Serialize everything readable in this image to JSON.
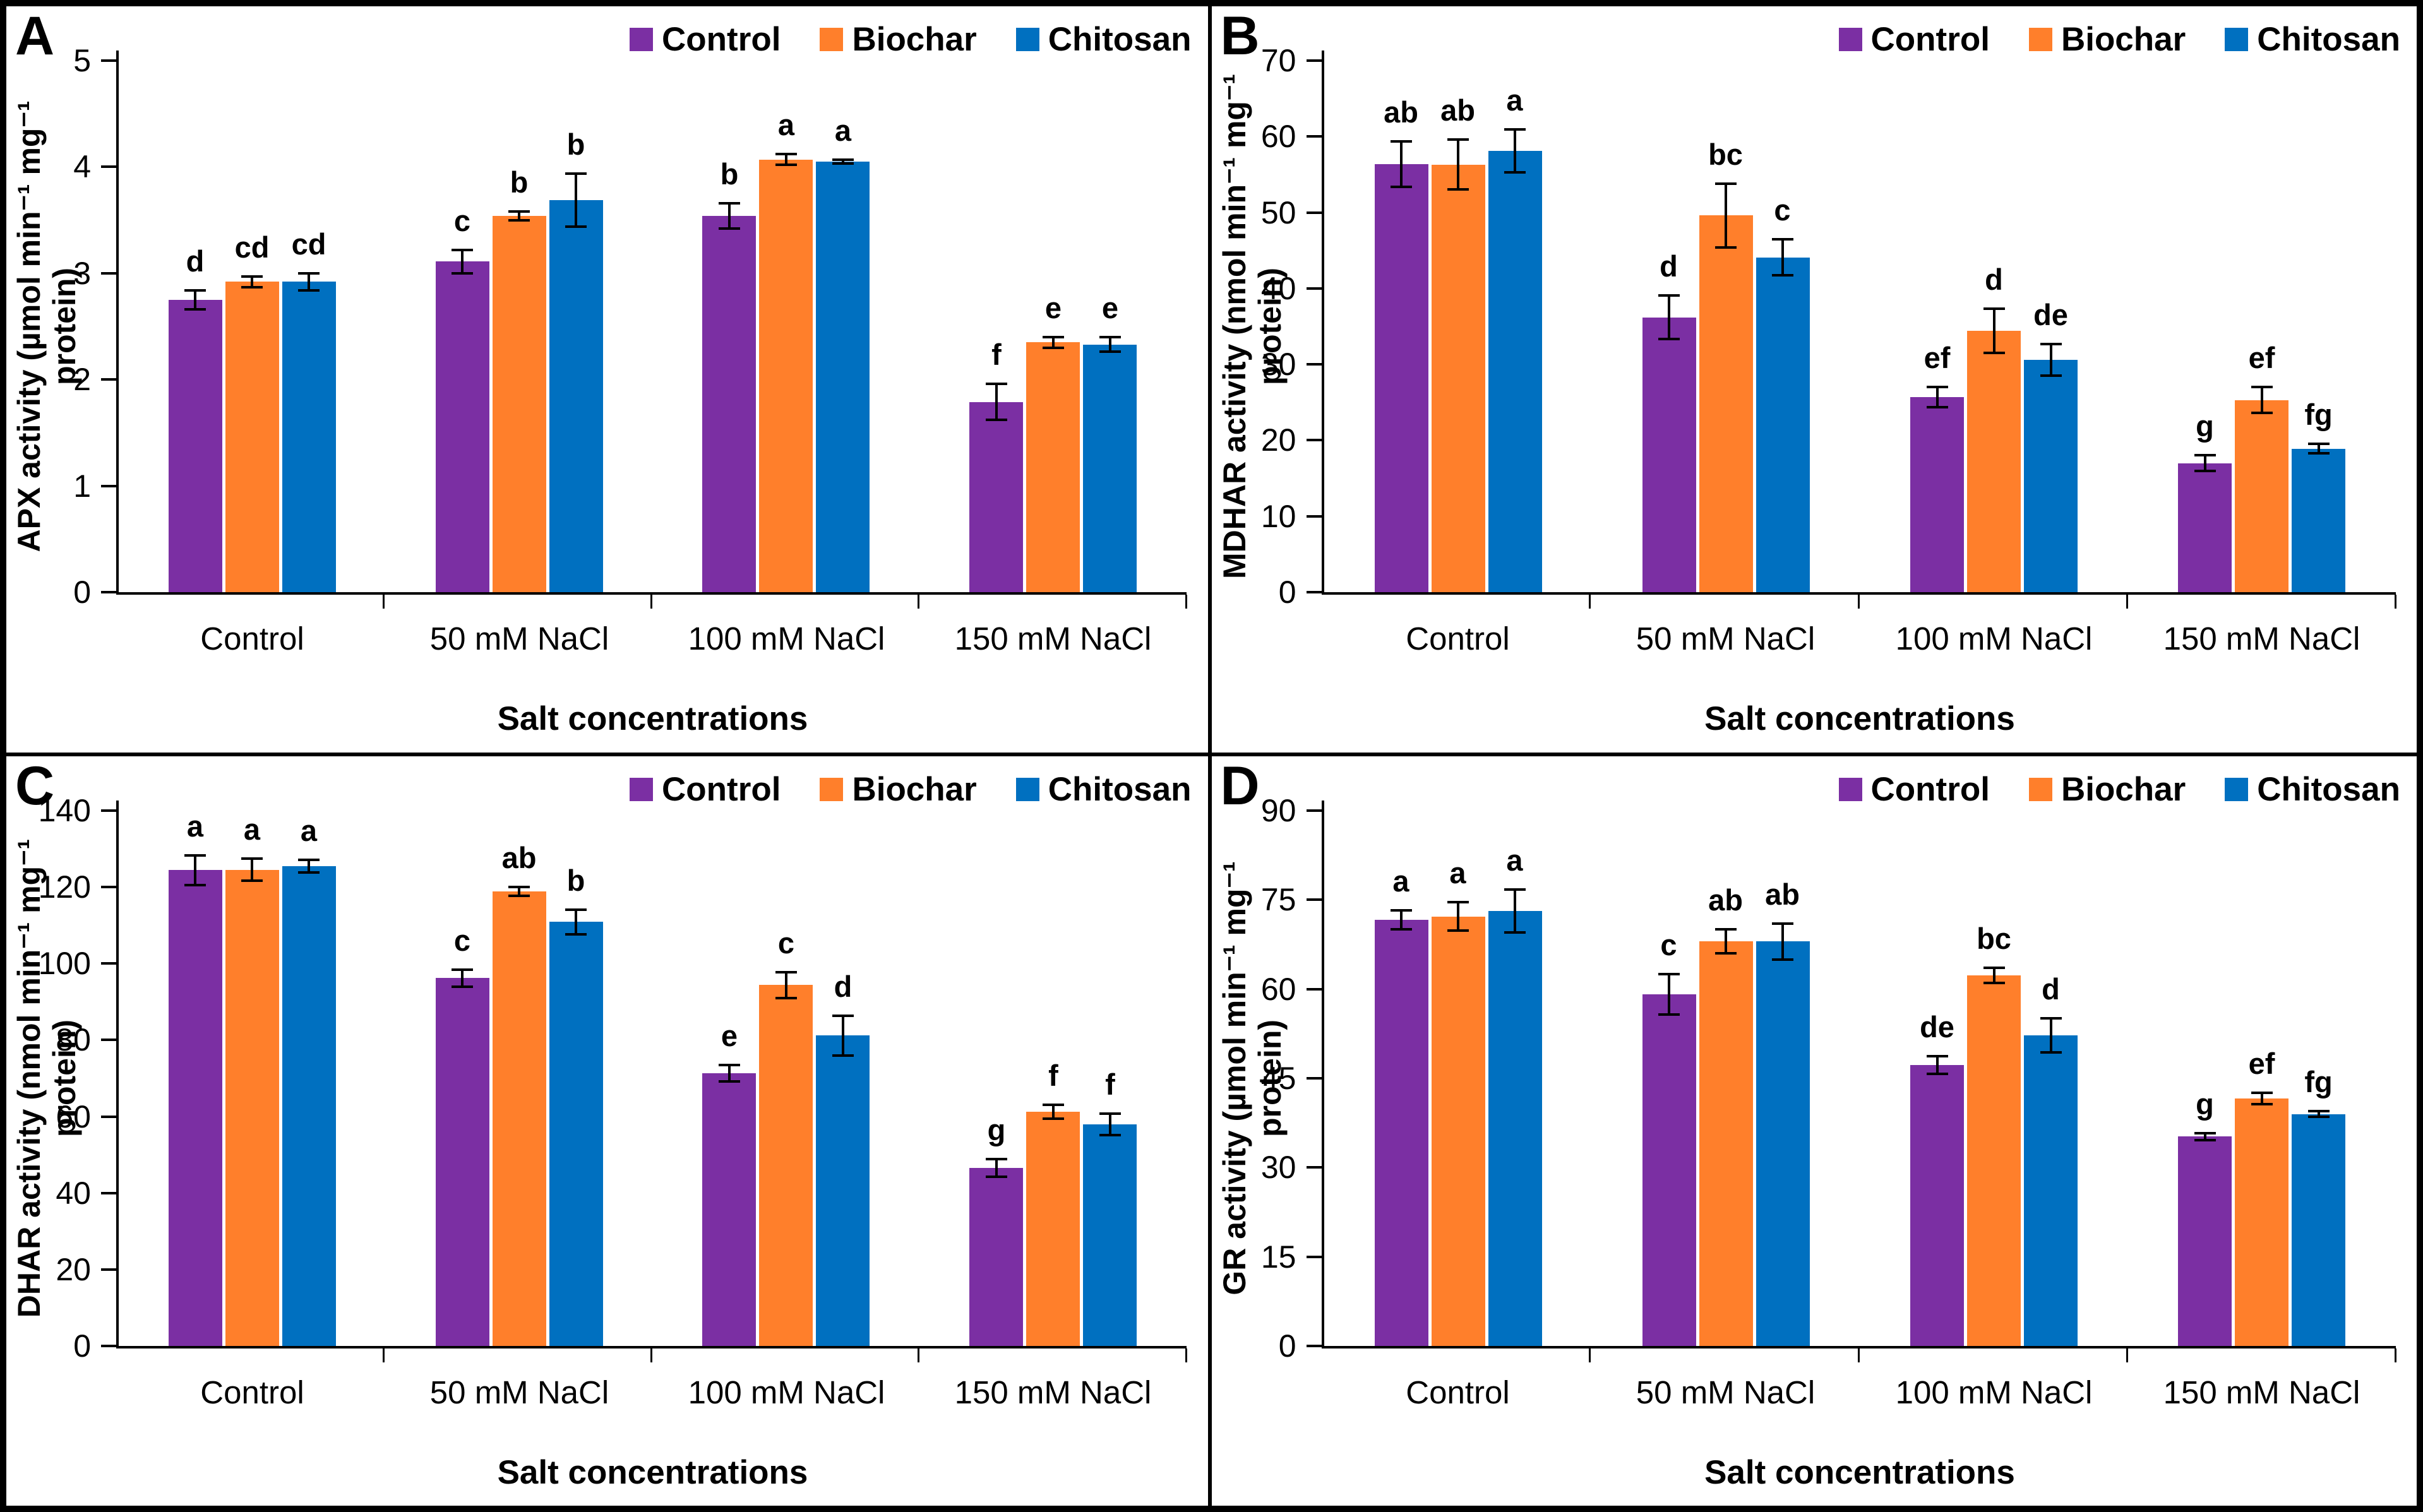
{
  "figure": {
    "x_title": "Salt concentrations",
    "categories": [
      "Control",
      "50 mM NaCl",
      "100 mM NaCl",
      "150 mM NaCl"
    ],
    "legend": [
      {
        "name": "Control",
        "color": "#7B2FA3"
      },
      {
        "name": "Biochar",
        "color": "#FF7F2B"
      },
      {
        "name": "Chitosan",
        "color": "#0070C0"
      }
    ]
  },
  "chart_data": [
    {
      "type": "bar",
      "panel_label": "A",
      "ylabel": "APX activity (µmol min⁻¹ mg⁻¹ protein)",
      "xlabel": "Salt concentrations",
      "ylim": [
        0,
        5
      ],
      "yticks": [
        0,
        1,
        2,
        3,
        4,
        5
      ],
      "grid": false,
      "legend_position": "top-right",
      "categories": [
        "Control",
        "50 mM NaCl",
        "100 mM NaCl",
        "150 mM NaCl"
      ],
      "series": [
        {
          "name": "Control",
          "color": "#7B2FA3",
          "values": [
            2.75,
            3.11,
            3.54,
            1.79
          ],
          "errors": [
            0.09,
            0.11,
            0.12,
            0.17
          ],
          "letters": [
            "d",
            "c",
            "b",
            "f"
          ]
        },
        {
          "name": "Biochar",
          "color": "#FF7F2B",
          "values": [
            2.92,
            3.54,
            4.07,
            2.35
          ],
          "errors": [
            0.05,
            0.04,
            0.05,
            0.05
          ],
          "letters": [
            "cd",
            "b",
            "a",
            "e"
          ]
        },
        {
          "name": "Chitosan",
          "color": "#0070C0",
          "values": [
            2.92,
            3.69,
            4.05,
            2.33
          ],
          "errors": [
            0.08,
            0.25,
            0.02,
            0.07
          ],
          "letters": [
            "cd",
            "b",
            "a",
            "e"
          ]
        }
      ]
    },
    {
      "type": "bar",
      "panel_label": "B",
      "ylabel": "MDHAR activity (nmol min⁻¹ mg⁻¹ protein)",
      "xlabel": "Salt concentrations",
      "ylim": [
        0,
        70
      ],
      "yticks": [
        0,
        10,
        20,
        30,
        40,
        50,
        60,
        70
      ],
      "grid": false,
      "legend_position": "top-right",
      "categories": [
        "Control",
        "50 mM NaCl",
        "100 mM NaCl",
        "150 mM NaCl"
      ],
      "series": [
        {
          "name": "Control",
          "color": "#7B2FA3",
          "values": [
            56.4,
            36.2,
            25.7,
            17.0
          ],
          "errors": [
            3.0,
            2.9,
            1.3,
            1.0
          ],
          "letters": [
            "ab",
            "d",
            "ef",
            "g"
          ]
        },
        {
          "name": "Biochar",
          "color": "#FF7F2B",
          "values": [
            56.3,
            49.6,
            34.4,
            25.3
          ],
          "errors": [
            3.3,
            4.2,
            2.9,
            1.7
          ],
          "letters": [
            "ab",
            "bc",
            "d",
            "ef"
          ]
        },
        {
          "name": "Chitosan",
          "color": "#0070C0",
          "values": [
            58.1,
            44.1,
            30.6,
            18.9
          ],
          "errors": [
            2.8,
            2.4,
            2.1,
            0.6
          ],
          "letters": [
            "a",
            "c",
            "de",
            "fg"
          ]
        }
      ]
    },
    {
      "type": "bar",
      "panel_label": "C",
      "ylabel": "DHAR activity (nmol min⁻¹ mg⁻¹ protein)",
      "xlabel": "Salt concentrations",
      "ylim": [
        0,
        140
      ],
      "yticks": [
        0,
        20,
        40,
        60,
        80,
        100,
        120,
        140
      ],
      "grid": false,
      "legend_position": "top-right",
      "categories": [
        "Control",
        "50 mM NaCl",
        "100 mM NaCl",
        "150 mM NaCl"
      ],
      "series": [
        {
          "name": "Control",
          "color": "#7B2FA3",
          "values": [
            124.4,
            96.2,
            71.3,
            46.5
          ],
          "errors": [
            3.8,
            2.2,
            2.1,
            2.3
          ],
          "letters": [
            "a",
            "c",
            "e",
            "g"
          ]
        },
        {
          "name": "Biochar",
          "color": "#FF7F2B",
          "values": [
            124.5,
            118.9,
            94.4,
            61.2
          ],
          "errors": [
            2.9,
            1.2,
            3.4,
            1.8
          ],
          "letters": [
            "a",
            "ab",
            "c",
            "f"
          ]
        },
        {
          "name": "Chitosan",
          "color": "#0070C0",
          "values": [
            125.5,
            110.9,
            81.2,
            58.0
          ],
          "errors": [
            1.6,
            3.2,
            5.2,
            2.8
          ],
          "letters": [
            "a",
            "b",
            "d",
            "f"
          ]
        }
      ]
    },
    {
      "type": "bar",
      "panel_label": "D",
      "ylabel": "GR activity (µmol min⁻¹ mg⁻¹ protein)",
      "xlabel": "Salt concentrations",
      "ylim": [
        0,
        90
      ],
      "yticks": [
        0,
        15,
        30,
        45,
        60,
        75,
        90
      ],
      "grid": false,
      "legend_position": "top-right",
      "categories": [
        "Control",
        "50 mM NaCl",
        "100 mM NaCl",
        "150 mM NaCl"
      ],
      "series": [
        {
          "name": "Control",
          "color": "#7B2FA3",
          "values": [
            71.6,
            59.1,
            47.2,
            35.2
          ],
          "errors": [
            1.6,
            3.4,
            1.5,
            0.6
          ],
          "letters": [
            "a",
            "c",
            "de",
            "g"
          ]
        },
        {
          "name": "Biochar",
          "color": "#FF7F2B",
          "values": [
            72.2,
            68.0,
            62.3,
            41.6
          ],
          "errors": [
            2.4,
            2.0,
            1.3,
            1.0
          ],
          "letters": [
            "a",
            "ab",
            "bc",
            "ef"
          ]
        },
        {
          "name": "Chitosan",
          "color": "#0070C0",
          "values": [
            73.1,
            68.0,
            52.2,
            39.0
          ],
          "errors": [
            3.6,
            3.0,
            2.9,
            0.5
          ],
          "letters": [
            "a",
            "ab",
            "d",
            "fg"
          ]
        }
      ]
    }
  ]
}
